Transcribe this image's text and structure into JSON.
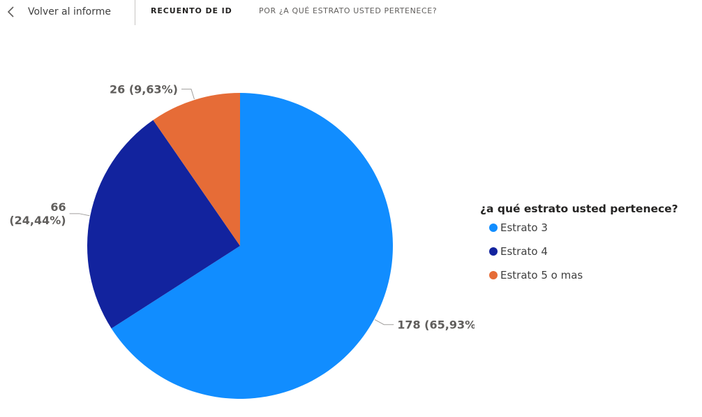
{
  "nav": {
    "back_label": "Volver al informe",
    "measure_label": "RECUENTO DE ID",
    "axis_label": "POR ¿A QUÉ ESTRATO USTED PERTENECE?"
  },
  "icons": {
    "back": "chevron-left-icon"
  },
  "legend": {
    "title": "¿a qué estrato usted pertenece?"
  },
  "chart_data": {
    "type": "pie",
    "title": "",
    "categories": [
      "Estrato 3",
      "Estrato 4",
      "Estrato 5 o mas"
    ],
    "values": [
      178,
      66,
      26
    ],
    "labels": [
      "178 (65,93%)",
      "66 (24,44%)",
      "26 (9,63%)"
    ],
    "colors": [
      "#118dff",
      "#12239e",
      "#e66c37"
    ],
    "legend_title": "¿a qué estrato usted pertenece?",
    "legend_position": "right"
  }
}
